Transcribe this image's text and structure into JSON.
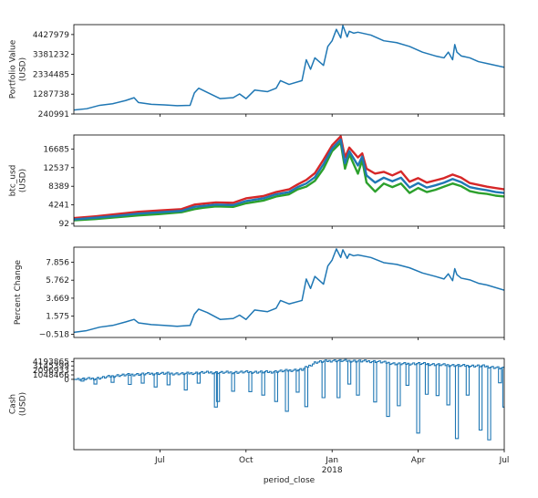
{
  "chart_data": [
    {
      "type": "line",
      "ylabel_lines": [
        "Portfolio Value",
        "(USD)"
      ],
      "yticks": [
        240991,
        1287738,
        2334485,
        3381232,
        4427979
      ],
      "ytick_labels": [
        "240991",
        "1287738",
        "2334485",
        "3381232",
        "4427979"
      ],
      "ylim": [
        240991,
        4950000
      ],
      "series": [
        {
          "color": "#1f77b4",
          "x": [
            0,
            0.03,
            0.06,
            0.09,
            0.12,
            0.14,
            0.15,
            0.18,
            0.21,
            0.24,
            0.27,
            0.28,
            0.29,
            0.31,
            0.34,
            0.37,
            0.385,
            0.4,
            0.42,
            0.45,
            0.47,
            0.48,
            0.5,
            0.53,
            0.54,
            0.55,
            0.56,
            0.58,
            0.59,
            0.6,
            0.61,
            0.62,
            0.625,
            0.635,
            0.64,
            0.65,
            0.66,
            0.69,
            0.72,
            0.75,
            0.78,
            0.81,
            0.84,
            0.86,
            0.87,
            0.88,
            0.885,
            0.89,
            0.9,
            0.92,
            0.94,
            0.96,
            1.0
          ],
          "values": [
            450000,
            520000,
            700000,
            780000,
            950000,
            1100000,
            850000,
            750000,
            720000,
            680000,
            700000,
            1350000,
            1600000,
            1380000,
            1050000,
            1100000,
            1300000,
            1050000,
            1500000,
            1420000,
            1600000,
            2000000,
            1800000,
            2000000,
            3100000,
            2600000,
            3200000,
            2800000,
            3800000,
            4100000,
            4700000,
            4250000,
            4900000,
            4300000,
            4600000,
            4500000,
            4550000,
            4400000,
            4100000,
            4000000,
            3800000,
            3500000,
            3300000,
            3200000,
            3500000,
            3100000,
            3900000,
            3500000,
            3300000,
            3200000,
            3000000,
            2900000,
            2700000
          ]
        }
      ]
    },
    {
      "type": "line",
      "ylabel_lines": [
        "btc_usd",
        "(USD)"
      ],
      "yticks": [
        92,
        4241,
        8389,
        12537,
        16685
      ],
      "ytick_labels": [
        "92",
        "4241",
        "8389",
        "12537",
        "16685"
      ],
      "ylim": [
        -500,
        19800
      ],
      "series": [
        {
          "color": "#d62728",
          "x": [
            0,
            0.05,
            0.1,
            0.15,
            0.2,
            0.25,
            0.28,
            0.3,
            0.33,
            0.37,
            0.4,
            0.44,
            0.47,
            0.5,
            0.52,
            0.54,
            0.56,
            0.58,
            0.6,
            0.62,
            0.63,
            0.64,
            0.66,
            0.67,
            0.68,
            0.7,
            0.72,
            0.74,
            0.76,
            0.78,
            0.8,
            0.82,
            0.84,
            0.86,
            0.88,
            0.9,
            0.92,
            0.94,
            0.96,
            0.98,
            1.0
          ],
          "values": [
            1300,
            1700,
            2200,
            2700,
            3000,
            3300,
            4300,
            4500,
            4800,
            4700,
            5700,
            6200,
            7100,
            7700,
            8800,
            9800,
            11300,
            14300,
            17500,
            19500,
            14800,
            17000,
            14800,
            15700,
            12300,
            11200,
            11600,
            10800,
            11700,
            9400,
            10200,
            9200,
            9700,
            10200,
            11000,
            10300,
            9100,
            8700,
            8300,
            8000,
            7700
          ]
        },
        {
          "color": "#2ca02c",
          "x": [
            0,
            0.05,
            0.1,
            0.15,
            0.2,
            0.25,
            0.28,
            0.3,
            0.33,
            0.37,
            0.4,
            0.44,
            0.47,
            0.5,
            0.52,
            0.54,
            0.56,
            0.58,
            0.6,
            0.62,
            0.63,
            0.64,
            0.66,
            0.67,
            0.68,
            0.7,
            0.72,
            0.74,
            0.76,
            0.78,
            0.8,
            0.82,
            0.84,
            0.86,
            0.88,
            0.9,
            0.92,
            0.94,
            0.96,
            0.98,
            1.0
          ],
          "values": [
            800,
            1100,
            1500,
            1900,
            2200,
            2600,
            3300,
            3600,
            3900,
            3800,
            4600,
            5200,
            6100,
            6600,
            7700,
            8300,
            9600,
            12300,
            16200,
            18100,
            12300,
            15500,
            11200,
            14200,
            9200,
            7200,
            9000,
            8200,
            9000,
            6900,
            8000,
            7100,
            7600,
            8300,
            9000,
            8400,
            7300,
            6900,
            6700,
            6300,
            6100
          ]
        },
        {
          "color": "#1f77b4",
          "x": [
            0,
            0.05,
            0.1,
            0.15,
            0.2,
            0.25,
            0.28,
            0.3,
            0.33,
            0.37,
            0.4,
            0.44,
            0.47,
            0.5,
            0.52,
            0.54,
            0.56,
            0.58,
            0.6,
            0.62,
            0.63,
            0.64,
            0.66,
            0.67,
            0.68,
            0.7,
            0.72,
            0.74,
            0.76,
            0.78,
            0.8,
            0.82,
            0.84,
            0.86,
            0.88,
            0.9,
            0.92,
            0.94,
            0.96,
            0.98,
            1.0
          ],
          "values": [
            1000,
            1400,
            1800,
            2300,
            2600,
            2900,
            3800,
            4000,
            4300,
            4200,
            5100,
            5700,
            6600,
            7100,
            8200,
            9000,
            10400,
            13300,
            16800,
            18800,
            13500,
            16200,
            13000,
            15000,
            10800,
            9200,
            10300,
            9500,
            10300,
            8100,
            9100,
            8100,
            8600,
            9200,
            10000,
            9300,
            8200,
            7800,
            7500,
            7100,
            6900
          ]
        }
      ]
    },
    {
      "type": "line",
      "ylabel_lines": [
        "Percent Change"
      ],
      "yticks": [
        -0.518,
        1.575,
        3.669,
        5.762,
        7.856
      ],
      "ytick_labels": [
        "−0.518",
        "1.575",
        "3.669",
        "5.762",
        "7.856"
      ],
      "ylim": [
        -0.9,
        9.6
      ],
      "series": [
        {
          "color": "#1f77b4",
          "x": [
            0,
            0.03,
            0.06,
            0.09,
            0.12,
            0.14,
            0.15,
            0.18,
            0.21,
            0.24,
            0.27,
            0.28,
            0.29,
            0.31,
            0.34,
            0.37,
            0.385,
            0.4,
            0.42,
            0.45,
            0.47,
            0.48,
            0.5,
            0.53,
            0.54,
            0.55,
            0.56,
            0.58,
            0.59,
            0.6,
            0.61,
            0.62,
            0.625,
            0.635,
            0.64,
            0.65,
            0.66,
            0.69,
            0.72,
            0.75,
            0.78,
            0.81,
            0.84,
            0.86,
            0.87,
            0.88,
            0.885,
            0.89,
            0.9,
            0.92,
            0.94,
            0.96,
            1.0
          ],
          "values": [
            -0.3,
            -0.1,
            0.3,
            0.5,
            0.9,
            1.2,
            0.8,
            0.6,
            0.5,
            0.4,
            0.5,
            1.8,
            2.4,
            2.0,
            1.2,
            1.3,
            1.7,
            1.2,
            2.3,
            2.1,
            2.5,
            3.4,
            3.0,
            3.4,
            5.9,
            4.8,
            6.2,
            5.3,
            7.4,
            8.1,
            9.4,
            8.4,
            9.3,
            8.3,
            8.8,
            8.6,
            8.7,
            8.4,
            7.8,
            7.6,
            7.2,
            6.6,
            6.2,
            5.9,
            6.5,
            5.7,
            7.1,
            6.4,
            6.0,
            5.8,
            5.4,
            5.2,
            4.6
          ]
        }
      ]
    },
    {
      "type": "line",
      "ylabel_lines": [
        "Cash",
        "(USD)"
      ],
      "yticks": [
        0,
        1048466,
        2096933,
        3145399,
        4193865
      ],
      "ytick_labels": [
        "0",
        "1048466",
        "2096933",
        "3145399",
        "4193865"
      ],
      "ylim": [
        -16500000,
        4900000
      ],
      "xticks": [
        0.2,
        0.4,
        0.6,
        0.8,
        1.0
      ],
      "xtick_labels": [
        "Jul",
        "Oct",
        "Jan",
        "Apr",
        "Jul"
      ],
      "xtick_sublabels": [
        "",
        "",
        "2018",
        "",
        ""
      ],
      "xlabel": "period_close",
      "series": [
        {
          "color": "#1f77b4",
          "baseline": [
            0,
            0.05,
            0.1,
            0.15,
            0.2,
            0.25,
            0.3,
            0.35,
            0.4,
            0.45,
            0.5,
            0.53,
            0.56,
            0.6,
            0.65,
            0.7,
            0.75,
            0.8,
            0.85,
            0.9,
            0.95,
            1.0
          ],
          "baseline_values": [
            0,
            200000,
            900000,
            1200000,
            1400000,
            1300000,
            1600000,
            1600000,
            1700000,
            1700000,
            2100000,
            2300000,
            4000000,
            4400000,
            4300000,
            4200000,
            3600000,
            3700000,
            3400000,
            3200000,
            3100000,
            2500000
          ],
          "drops_x": [
            0.02,
            0.05,
            0.09,
            0.13,
            0.16,
            0.19,
            0.22,
            0.26,
            0.29,
            0.33,
            0.335,
            0.37,
            0.41,
            0.44,
            0.47,
            0.495,
            0.52,
            0.54,
            0.58,
            0.615,
            0.64,
            0.66,
            0.7,
            0.73,
            0.755,
            0.775,
            0.8,
            0.82,
            0.845,
            0.87,
            0.89,
            0.915,
            0.945,
            0.965,
            0.99,
            1.0
          ],
          "drops_values": [
            -400000,
            -1100000,
            -700000,
            -1200000,
            -900000,
            -1800000,
            -1300000,
            -2500000,
            -900000,
            -6500000,
            -5200000,
            -2800000,
            -2900000,
            -3700000,
            -5200000,
            -7500000,
            -3000000,
            -6400000,
            -4300000,
            -4300000,
            -1100000,
            -3700000,
            -5300000,
            -8700000,
            -6200000,
            -1400000,
            -12600000,
            -3500000,
            -3800000,
            -6000000,
            -13900000,
            -3700000,
            -11900000,
            -14200000,
            -800000,
            -6500000
          ]
        }
      ]
    }
  ]
}
